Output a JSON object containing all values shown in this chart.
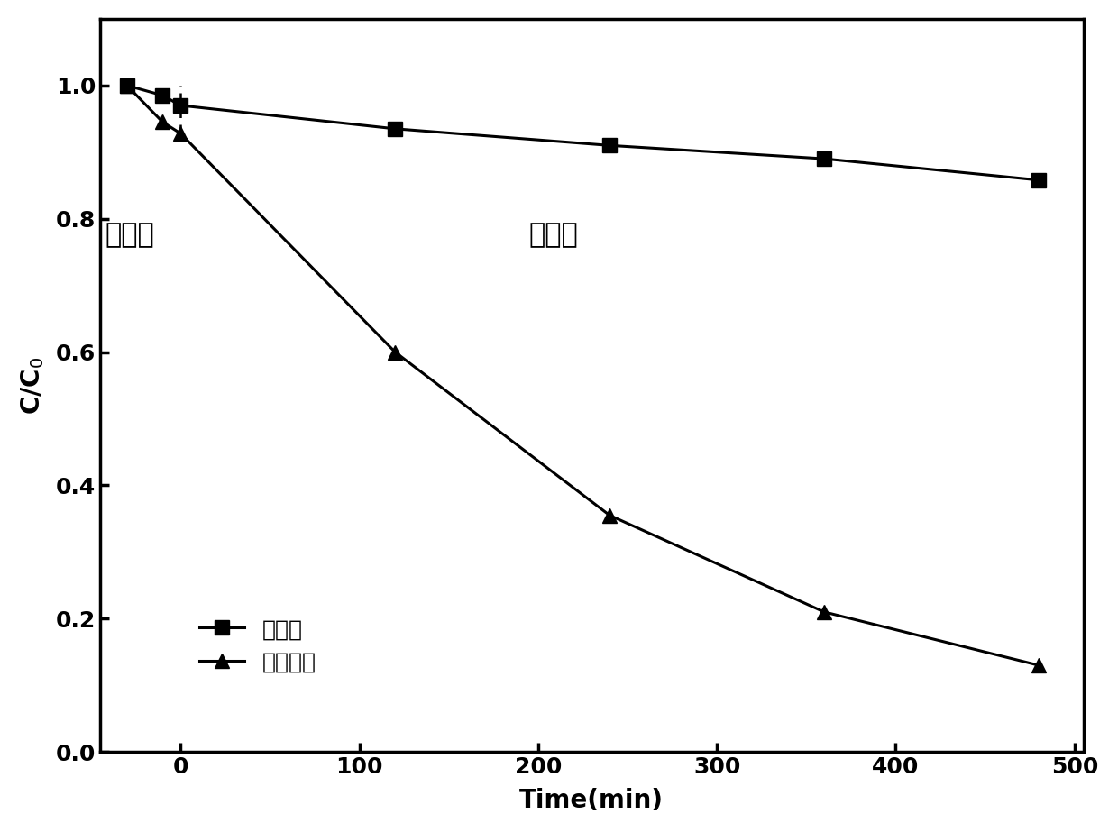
{
  "series1_x": [
    -30,
    -10,
    0,
    120,
    240,
    360,
    480
  ],
  "series1_y": [
    1.0,
    0.985,
    0.97,
    0.935,
    0.91,
    0.89,
    0.858
  ],
  "series2_x": [
    -30,
    -10,
    0,
    120,
    240,
    360,
    480
  ],
  "series2_y": [
    1.0,
    0.945,
    0.928,
    0.6,
    0.355,
    0.21,
    0.13
  ],
  "xlabel": "Time(min)",
  "ylabel": "C/C$_0$",
  "xlim": [
    -45,
    505
  ],
  "ylim": [
    0.0,
    1.1
  ],
  "yticks": [
    0.0,
    0.2,
    0.4,
    0.6,
    0.8,
    1.0
  ],
  "xticks": [
    0,
    100,
    200,
    300,
    400,
    500
  ],
  "label1": "空白样",
  "label2": "陶瓷祢层",
  "annotation_dark": "暗反应",
  "annotation_light": "光反应",
  "dashed_line_x": 0,
  "dashed_line_ymax": 1.0,
  "dashed_line_ymin": 0.928,
  "line_color": "#000000",
  "marker1": "s",
  "marker2": "^",
  "markersize": 11,
  "linewidth": 2.2,
  "fontsize_labels": 20,
  "fontsize_ticks": 18,
  "fontsize_legend": 18,
  "fontsize_annotation": 22,
  "background_color": "#ffffff"
}
